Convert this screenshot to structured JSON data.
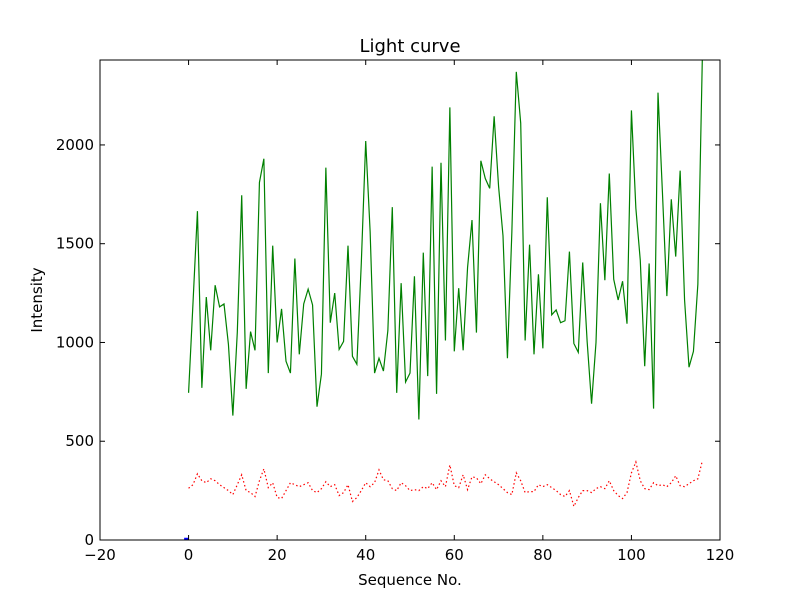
{
  "chart_data": {
    "type": "line",
    "title": "Light curve",
    "xlabel": "Sequence No.",
    "ylabel": "Intensity",
    "xlim": [
      -20,
      120
    ],
    "ylim": [
      0,
      2430
    ],
    "xticks": [
      -20,
      0,
      20,
      40,
      60,
      80,
      100,
      120
    ],
    "yticks": [
      0,
      500,
      1000,
      1500,
      2000
    ],
    "xtick_labels": [
      "−20",
      "0",
      "20",
      "40",
      "60",
      "80",
      "100",
      "120"
    ],
    "ytick_labels": [
      "0",
      "500",
      "1000",
      "1500",
      "2000"
    ],
    "grid": false,
    "legend": "none",
    "series": [
      {
        "style": "solid",
        "color": "#008000",
        "x": [
          0,
          1,
          2,
          3,
          4,
          5,
          6,
          7,
          8,
          9,
          10,
          11,
          12,
          13,
          14,
          15,
          16,
          17,
          18,
          19,
          20,
          21,
          22,
          23,
          24,
          25,
          26,
          27,
          28,
          29,
          30,
          31,
          32,
          33,
          34,
          35,
          36,
          37,
          38,
          39,
          40,
          41,
          42,
          43,
          44,
          45,
          46,
          47,
          48,
          49,
          50,
          51,
          52,
          53,
          54,
          55,
          56,
          57,
          58,
          59,
          60,
          61,
          62,
          63,
          64,
          65,
          66,
          67,
          68,
          69,
          70,
          71,
          72,
          73,
          74,
          75,
          76,
          77,
          78,
          79,
          80,
          81,
          82,
          83,
          84,
          85,
          86,
          87,
          88,
          89,
          90,
          91,
          92,
          93,
          94,
          95,
          96,
          97,
          98,
          99,
          100,
          101,
          102,
          103,
          104,
          105,
          106,
          107,
          108,
          109,
          110,
          111,
          112,
          113,
          114,
          115,
          116
        ],
        "values": [
          745,
          1200,
          1665,
          770,
          1230,
          960,
          1290,
          1180,
          1195,
          990,
          630,
          1050,
          1745,
          765,
          1055,
          960,
          1810,
          1930,
          845,
          1490,
          1000,
          1170,
          905,
          845,
          1425,
          940,
          1195,
          1270,
          1190,
          675,
          840,
          1885,
          1100,
          1250,
          965,
          1005,
          1490,
          930,
          890,
          1400,
          2020,
          1560,
          845,
          920,
          855,
          1060,
          1685,
          745,
          1300,
          800,
          845,
          1335,
          610,
          1455,
          830,
          1890,
          740,
          1910,
          1010,
          2190,
          955,
          1275,
          960,
          1380,
          1620,
          1050,
          1920,
          1830,
          1780,
          2145,
          1790,
          1540,
          920,
          1560,
          2370,
          2110,
          1010,
          1495,
          940,
          1345,
          970,
          1735,
          1140,
          1165,
          1100,
          1110,
          1460,
          995,
          950,
          1405,
          1005,
          690,
          1000,
          1705,
          1315,
          1855,
          1320,
          1215,
          1310,
          1095,
          2175,
          1680,
          1415,
          880,
          1400,
          665,
          2265,
          1760,
          1235,
          1725,
          1435,
          1870,
          1215,
          875,
          955,
          1295,
          2430
        ]
      },
      {
        "style": "dotted",
        "color": "#ff0000",
        "x": [
          0,
          1,
          2,
          3,
          4,
          5,
          6,
          7,
          8,
          9,
          10,
          11,
          12,
          13,
          14,
          15,
          16,
          17,
          18,
          19,
          20,
          21,
          22,
          23,
          24,
          25,
          26,
          27,
          28,
          29,
          30,
          31,
          32,
          33,
          34,
          35,
          36,
          37,
          38,
          39,
          40,
          41,
          42,
          43,
          44,
          45,
          46,
          47,
          48,
          49,
          50,
          51,
          52,
          53,
          54,
          55,
          56,
          57,
          58,
          59,
          60,
          61,
          62,
          63,
          64,
          65,
          66,
          67,
          68,
          69,
          70,
          71,
          72,
          73,
          74,
          75,
          76,
          77,
          78,
          79,
          80,
          81,
          82,
          83,
          84,
          85,
          86,
          87,
          88,
          89,
          90,
          91,
          92,
          93,
          94,
          95,
          96,
          97,
          98,
          99,
          100,
          101,
          102,
          103,
          104,
          105,
          106,
          107,
          108,
          109,
          110,
          111,
          112,
          113,
          114,
          115,
          116
        ],
        "values": [
          262,
          280,
          335,
          300,
          290,
          310,
          300,
          280,
          265,
          250,
          230,
          280,
          330,
          250,
          240,
          220,
          300,
          360,
          265,
          290,
          215,
          210,
          250,
          290,
          280,
          270,
          280,
          290,
          250,
          240,
          260,
          295,
          270,
          280,
          225,
          240,
          280,
          195,
          215,
          250,
          290,
          270,
          290,
          355,
          305,
          300,
          260,
          250,
          290,
          275,
          250,
          255,
          250,
          270,
          260,
          290,
          255,
          300,
          270,
          380,
          275,
          265,
          330,
          255,
          320,
          315,
          285,
          330,
          310,
          295,
          280,
          260,
          240,
          230,
          340,
          300,
          240,
          245,
          245,
          280,
          270,
          280,
          265,
          250,
          230,
          220,
          250,
          170,
          215,
          250,
          250,
          240,
          260,
          270,
          260,
          300,
          250,
          225,
          210,
          240,
          340,
          395,
          300,
          260,
          255,
          290,
          275,
          280,
          270,
          290,
          325,
          275,
          270,
          285,
          300,
          310,
          400
        ]
      },
      {
        "style": "solid",
        "color": "#0000ff",
        "x": [
          -1,
          0
        ],
        "values": [
          5,
          5
        ]
      }
    ]
  }
}
